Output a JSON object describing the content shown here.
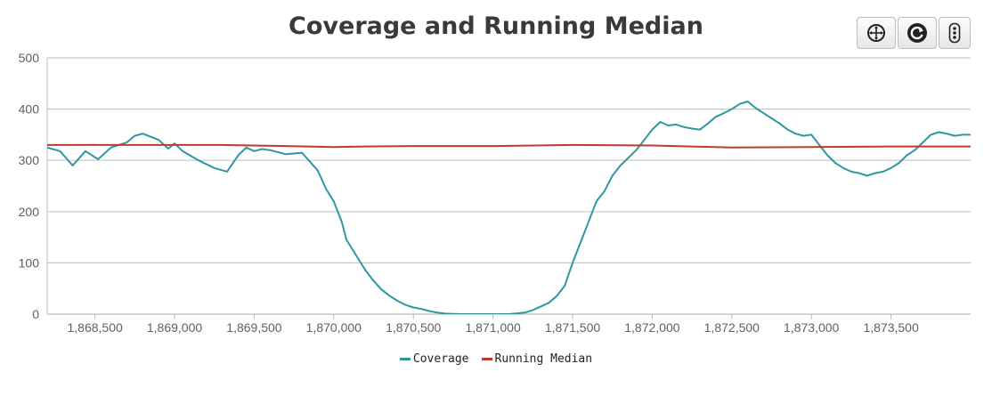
{
  "title": "Coverage and Running Median",
  "toolbar": [
    {
      "name": "pan-button",
      "icon": "move-icon"
    },
    {
      "name": "reset-button",
      "icon": "refresh-icon"
    },
    {
      "name": "menu-button",
      "icon": "more-vertical-icon"
    }
  ],
  "colors": {
    "coverage": "#2e98a0",
    "median": "#c0392b",
    "grid": "#d8d8d8",
    "axis_text": "#606060"
  },
  "chart_data": {
    "type": "line",
    "title": "Coverage and Running Median",
    "xlim": [
      1868200,
      1874000
    ],
    "ylim": [
      0,
      500
    ],
    "x_ticks": [
      1868500,
      1869000,
      1869500,
      1870000,
      1870500,
      1871000,
      1871500,
      1872000,
      1872500,
      1873000,
      1873500
    ],
    "x_tick_labels": [
      "1,868,500",
      "1,869,000",
      "1,869,500",
      "1,870,000",
      "1,870,500",
      "1,871,000",
      "1,871,500",
      "1,872,000",
      "1,872,500",
      "1,873,000",
      "1,873,500"
    ],
    "y_ticks": [
      0,
      100,
      200,
      300,
      400,
      500
    ],
    "y_tick_labels": [
      "0",
      "100",
      "200",
      "300",
      "400",
      "500"
    ],
    "grid": true,
    "legend_position": "bottom-center",
    "series": [
      {
        "name": "Coverage",
        "color": "#2e98a0",
        "x": [
          1868200,
          1868280,
          1868360,
          1868440,
          1868520,
          1868600,
          1868700,
          1868750,
          1868800,
          1868900,
          1868960,
          1869000,
          1869050,
          1869150,
          1869250,
          1869330,
          1869400,
          1869450,
          1869500,
          1869550,
          1869600,
          1869700,
          1869800,
          1869900,
          1869950,
          1870000,
          1870050,
          1870080,
          1870150,
          1870200,
          1870250,
          1870300,
          1870350,
          1870400,
          1870450,
          1870500,
          1870550,
          1870600,
          1870650,
          1870700,
          1870800,
          1870900,
          1871000,
          1871100,
          1871200,
          1871250,
          1871300,
          1871350,
          1871400,
          1871450,
          1871500,
          1871550,
          1871600,
          1871650,
          1871700,
          1871750,
          1871800,
          1871850,
          1871900,
          1871950,
          1872000,
          1872050,
          1872100,
          1872150,
          1872200,
          1872250,
          1872300,
          1872350,
          1872400,
          1872450,
          1872500,
          1872550,
          1872600,
          1872650,
          1872700,
          1872750,
          1872800,
          1872850,
          1872900,
          1872950,
          1873000,
          1873050,
          1873100,
          1873150,
          1873200,
          1873250,
          1873300,
          1873350,
          1873400,
          1873450,
          1873500,
          1873550,
          1873600,
          1873650,
          1873700,
          1873750,
          1873800,
          1873850,
          1873900,
          1873950,
          1874000
        ],
        "y": [
          325,
          318,
          290,
          318,
          302,
          325,
          335,
          348,
          352,
          340,
          323,
          333,
          318,
          300,
          285,
          278,
          310,
          325,
          318,
          322,
          320,
          312,
          315,
          280,
          245,
          220,
          180,
          145,
          110,
          85,
          65,
          48,
          36,
          26,
          18,
          13,
          10,
          6,
          3,
          1,
          0,
          0,
          0,
          0,
          3,
          8,
          15,
          22,
          35,
          55,
          100,
          140,
          180,
          220,
          240,
          270,
          290,
          305,
          320,
          340,
          360,
          375,
          368,
          370,
          365,
          362,
          360,
          372,
          385,
          392,
          400,
          410,
          415,
          402,
          392,
          382,
          372,
          360,
          352,
          348,
          350,
          330,
          310,
          295,
          285,
          278,
          275,
          270,
          275,
          278,
          285,
          295,
          310,
          320,
          335,
          350,
          355,
          352,
          348,
          350,
          350
        ]
      },
      {
        "name": "Running Median",
        "color": "#c0392b",
        "x": [
          1868200,
          1868700,
          1869300,
          1869700,
          1870000,
          1870200,
          1870500,
          1871000,
          1871500,
          1872000,
          1872500,
          1873000,
          1873500,
          1874000
        ],
        "y": [
          330,
          330,
          330,
          328,
          326,
          327,
          328,
          328,
          330,
          329,
          325,
          326,
          327,
          327
        ]
      }
    ]
  },
  "legend": [
    {
      "label": "Coverage",
      "color": "#2e98a0"
    },
    {
      "label": "Running Median",
      "color": "#c0392b"
    }
  ]
}
